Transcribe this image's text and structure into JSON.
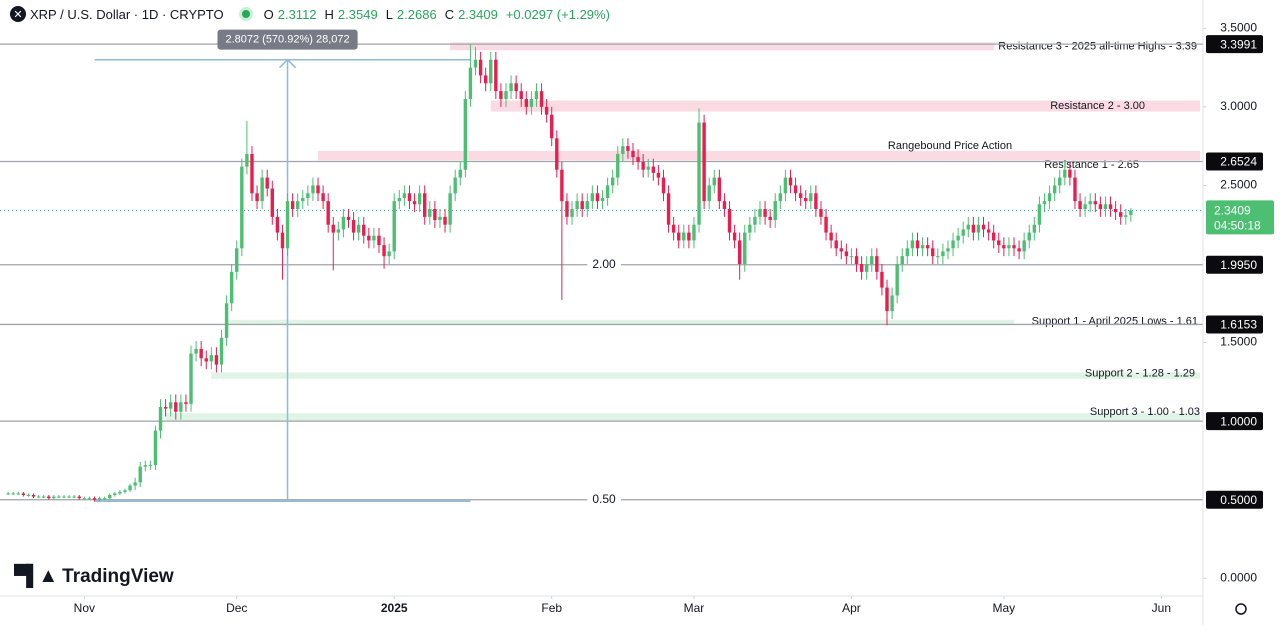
{
  "chart_data": {
    "type": "candlestick",
    "title": "XRP / U.S. Dollar · 1D · CRYPTO",
    "ohlc_legend": [
      {
        "key": "O",
        "value": 2.3112
      },
      {
        "key": "H",
        "value": 2.3549
      },
      {
        "key": "L",
        "value": 2.2686
      },
      {
        "key": "C",
        "value": 2.3409
      }
    ],
    "change": "+0.0297 (+1.29%)",
    "up_color": "#4cbf73",
    "down_color": "#e91e4f",
    "x": [
      0,
      1,
      2,
      3,
      4,
      5,
      6,
      7,
      8,
      9,
      10,
      11,
      12,
      13,
      14,
      15,
      16,
      17,
      18,
      19,
      20,
      21,
      22,
      23,
      24,
      25,
      26,
      27,
      28,
      29,
      30,
      31,
      32,
      33,
      34,
      35,
      36,
      37,
      38,
      39,
      40,
      41,
      42,
      43,
      44,
      45,
      46,
      47,
      48,
      49,
      50,
      51,
      52,
      53,
      54,
      55,
      56,
      57,
      58,
      59,
      60,
      61,
      62,
      63,
      64,
      65,
      66,
      67,
      68,
      69,
      70,
      71,
      72,
      73,
      74,
      75,
      76,
      77,
      78,
      79,
      80,
      81,
      82,
      83,
      84,
      85,
      86,
      87,
      88,
      89,
      90,
      91,
      92,
      93,
      94,
      95,
      96,
      97,
      98,
      99,
      100,
      101,
      102,
      103,
      104,
      105,
      106,
      107,
      108,
      109,
      110,
      111,
      112,
      113,
      114,
      115,
      116,
      117,
      118,
      119,
      120,
      121,
      122,
      123,
      124,
      125,
      126,
      127,
      128,
      129,
      130,
      131,
      132,
      133,
      134,
      135,
      136,
      137,
      138,
      139,
      140,
      141,
      142,
      143,
      144,
      145,
      146,
      147,
      148,
      149,
      150,
      151,
      152,
      153,
      154,
      155,
      156,
      157,
      158,
      159,
      160,
      161,
      162,
      163,
      164,
      165,
      166,
      167,
      168,
      169,
      170,
      171,
      172,
      173,
      174,
      175,
      176,
      177,
      178,
      179,
      180,
      181,
      182,
      183,
      184,
      185,
      186,
      187,
      188,
      189,
      190,
      191,
      192,
      193,
      194,
      195,
      196,
      197,
      198,
      199,
      200,
      201,
      202,
      203,
      204,
      205,
      206,
      207,
      208,
      209,
      210,
      211,
      212,
      213,
      214,
      215,
      216,
      217,
      218,
      219,
      220,
      221
    ],
    "open": [
      0.54,
      0.54,
      0.54,
      0.54,
      0.53,
      0.53,
      0.52,
      0.52,
      0.52,
      0.51,
      0.52,
      0.52,
      0.52,
      0.52,
      0.52,
      0.51,
      0.51,
      0.51,
      0.5,
      0.51,
      0.51,
      0.53,
      0.54,
      0.55,
      0.56,
      0.59,
      0.61,
      0.71,
      0.72,
      0.72,
      0.94,
      1.09,
      1.08,
      1.12,
      1.06,
      1.12,
      1.11,
      1.43,
      1.46,
      1.4,
      1.38,
      1.42,
      1.36,
      1.53,
      1.75,
      1.95,
      2.1,
      2.62,
      2.7,
      2.45,
      2.4,
      2.55,
      2.48,
      2.3,
      2.2,
      2.1,
      2.4,
      2.35,
      2.4,
      2.42,
      2.45,
      2.5,
      2.45,
      2.4,
      2.25,
      2.2,
      2.22,
      2.3,
      2.28,
      2.2,
      2.25,
      2.18,
      2.15,
      2.18,
      2.12,
      2.05,
      2.08,
      2.4,
      2.42,
      2.45,
      2.4,
      2.38,
      2.45,
      2.3,
      2.35,
      2.28,
      2.3,
      2.25,
      2.45,
      2.55,
      2.6,
      3.05,
      3.25,
      3.3,
      3.2,
      3.15,
      3.3,
      3.1,
      3.05,
      3.1,
      3.15,
      3.1,
      3.05,
      3.0,
      3.05,
      3.1,
      3.0,
      2.95,
      2.8,
      2.6,
      2.4,
      2.3,
      2.35,
      2.4,
      2.35,
      2.4,
      2.45,
      2.4,
      2.42,
      2.5,
      2.55,
      2.7,
      2.75,
      2.72,
      2.68,
      2.65,
      2.6,
      2.62,
      2.58,
      2.55,
      2.45,
      2.25,
      2.2,
      2.15,
      2.2,
      2.15,
      2.25,
      2.9,
      2.4,
      2.5,
      2.55,
      2.4,
      2.35,
      2.2,
      2.15,
      2.0,
      2.2,
      2.25,
      2.3,
      2.35,
      2.3,
      2.28,
      2.4,
      2.45,
      2.55,
      2.5,
      2.45,
      2.42,
      2.4,
      2.45,
      2.35,
      2.3,
      2.2,
      2.15,
      2.1,
      2.08,
      2.05,
      2.05,
      2.0,
      1.95,
      2.0,
      2.05,
      1.95,
      1.85,
      1.7,
      1.8,
      2.0,
      2.05,
      2.1,
      2.15,
      2.1,
      2.12,
      2.1,
      2.05,
      2.05,
      2.08,
      2.1,
      2.15,
      2.18,
      2.22,
      2.25,
      2.2,
      2.25,
      2.22,
      2.2,
      2.15,
      2.12,
      2.1,
      2.12,
      2.1,
      2.08,
      2.15,
      2.2,
      2.25,
      2.38,
      2.4,
      2.45,
      2.5,
      2.55,
      2.6,
      2.55,
      2.4,
      2.35,
      2.38,
      2.4,
      2.38,
      2.35,
      2.38,
      2.35,
      2.33,
      2.3,
      2.3112
    ],
    "high": [
      0.55,
      0.55,
      0.55,
      0.55,
      0.54,
      0.54,
      0.53,
      0.53,
      0.53,
      0.53,
      0.53,
      0.53,
      0.53,
      0.53,
      0.53,
      0.52,
      0.52,
      0.52,
      0.52,
      0.52,
      0.54,
      0.55,
      0.56,
      0.57,
      0.6,
      0.64,
      0.74,
      0.75,
      0.75,
      0.97,
      1.14,
      1.14,
      1.17,
      1.17,
      1.17,
      1.17,
      1.48,
      1.51,
      1.51,
      1.45,
      1.47,
      1.47,
      1.58,
      1.8,
      2.0,
      2.15,
      2.67,
      2.91,
      2.75,
      2.5,
      2.6,
      2.6,
      2.53,
      2.35,
      2.25,
      2.45,
      2.45,
      2.45,
      2.47,
      2.5,
      2.55,
      2.55,
      2.5,
      2.45,
      2.3,
      2.27,
      2.35,
      2.35,
      2.33,
      2.3,
      2.3,
      2.23,
      2.23,
      2.23,
      2.17,
      2.13,
      2.45,
      2.47,
      2.5,
      2.5,
      2.45,
      2.5,
      2.5,
      2.4,
      2.4,
      2.35,
      2.35,
      2.5,
      2.6,
      2.65,
      3.1,
      3.4,
      3.38,
      3.35,
      3.25,
      3.35,
      3.35,
      3.15,
      3.15,
      3.2,
      3.2,
      3.15,
      3.1,
      3.1,
      3.15,
      3.15,
      3.05,
      3.0,
      2.85,
      2.65,
      2.45,
      2.4,
      2.45,
      2.45,
      2.45,
      2.5,
      2.5,
      2.47,
      2.55,
      2.6,
      2.75,
      2.8,
      2.8,
      2.77,
      2.73,
      2.7,
      2.67,
      2.67,
      2.63,
      2.6,
      2.5,
      2.3,
      2.25,
      2.25,
      2.25,
      2.3,
      2.99,
      2.95,
      2.55,
      2.6,
      2.6,
      2.45,
      2.4,
      2.25,
      2.2,
      2.25,
      2.3,
      2.35,
      2.4,
      2.4,
      2.35,
      2.45,
      2.5,
      2.6,
      2.6,
      2.55,
      2.5,
      2.47,
      2.5,
      2.5,
      2.4,
      2.35,
      2.25,
      2.2,
      2.15,
      2.13,
      2.1,
      2.1,
      2.05,
      2.05,
      2.1,
      2.1,
      2.0,
      1.9,
      1.85,
      2.05,
      2.1,
      2.15,
      2.2,
      2.2,
      2.17,
      2.17,
      2.15,
      2.1,
      2.13,
      2.15,
      2.2,
      2.23,
      2.27,
      2.3,
      2.3,
      2.3,
      2.3,
      2.27,
      2.25,
      2.2,
      2.17,
      2.17,
      2.17,
      2.15,
      2.2,
      2.25,
      2.3,
      2.43,
      2.45,
      2.5,
      2.55,
      2.6,
      2.65,
      2.65,
      2.6,
      2.45,
      2.43,
      2.45,
      2.45,
      2.43,
      2.43,
      2.43,
      2.4,
      2.38,
      2.35,
      2.3549
    ],
    "low": [
      0.53,
      0.53,
      0.53,
      0.52,
      0.52,
      0.51,
      0.51,
      0.51,
      0.5,
      0.5,
      0.51,
      0.51,
      0.51,
      0.51,
      0.5,
      0.5,
      0.5,
      0.49,
      0.49,
      0.5,
      0.5,
      0.52,
      0.53,
      0.54,
      0.55,
      0.56,
      0.58,
      0.68,
      0.69,
      0.69,
      0.89,
      1.03,
      1.03,
      1.01,
      1.01,
      1.06,
      1.06,
      1.38,
      1.35,
      1.33,
      1.33,
      1.31,
      1.31,
      1.48,
      1.7,
      1.9,
      2.05,
      2.57,
      2.4,
      2.35,
      2.35,
      2.43,
      2.25,
      2.15,
      1.9,
      2.05,
      2.3,
      2.3,
      2.35,
      2.37,
      2.4,
      2.4,
      2.35,
      2.2,
      1.96,
      2.15,
      2.17,
      2.23,
      2.15,
      2.15,
      2.13,
      2.1,
      2.1,
      2.07,
      1.97,
      2.0,
      2.03,
      2.35,
      2.37,
      2.35,
      2.33,
      2.33,
      2.25,
      2.25,
      2.23,
      2.23,
      2.2,
      2.2,
      2.4,
      2.5,
      2.55,
      3.0,
      3.2,
      3.15,
      3.1,
      3.1,
      3.05,
      3.0,
      3.0,
      3.05,
      3.05,
      3.0,
      2.95,
      2.95,
      3.0,
      2.95,
      2.9,
      2.75,
      2.55,
      1.77,
      2.25,
      2.25,
      2.3,
      2.3,
      2.3,
      2.35,
      2.35,
      2.35,
      2.37,
      2.45,
      2.5,
      2.65,
      2.67,
      2.63,
      2.6,
      2.55,
      2.55,
      2.53,
      2.5,
      2.4,
      2.2,
      2.15,
      2.1,
      2.1,
      2.1,
      2.1,
      2.2,
      2.35,
      2.35,
      2.45,
      2.35,
      2.3,
      2.15,
      2.1,
      1.9,
      1.95,
      2.15,
      2.2,
      2.25,
      2.25,
      2.23,
      2.23,
      2.35,
      2.4,
      2.45,
      2.4,
      2.37,
      2.35,
      2.35,
      2.3,
      2.25,
      2.15,
      2.1,
      2.05,
      2.03,
      2.0,
      2.0,
      1.95,
      1.9,
      1.9,
      1.95,
      1.9,
      1.8,
      1.61,
      1.65,
      1.75,
      1.95,
      2.0,
      2.05,
      2.05,
      2.05,
      2.05,
      2.0,
      2.0,
      2.0,
      2.03,
      2.05,
      2.1,
      2.13,
      2.17,
      2.15,
      2.15,
      2.17,
      2.15,
      2.1,
      2.07,
      2.05,
      2.05,
      2.05,
      2.03,
      2.03,
      2.1,
      2.15,
      2.2,
      2.33,
      2.35,
      2.4,
      2.45,
      2.5,
      2.5,
      2.35,
      2.3,
      2.3,
      2.33,
      2.33,
      2.3,
      2.3,
      2.3,
      2.28,
      2.25,
      2.25,
      2.2686
    ],
    "close": [
      0.54,
      0.54,
      0.54,
      0.53,
      0.53,
      0.52,
      0.52,
      0.52,
      0.51,
      0.52,
      0.52,
      0.52,
      0.52,
      0.52,
      0.51,
      0.51,
      0.51,
      0.5,
      0.51,
      0.51,
      0.53,
      0.54,
      0.55,
      0.56,
      0.59,
      0.61,
      0.71,
      0.72,
      0.72,
      0.94,
      1.09,
      1.08,
      1.12,
      1.06,
      1.12,
      1.11,
      1.43,
      1.46,
      1.4,
      1.38,
      1.42,
      1.36,
      1.53,
      1.75,
      1.95,
      2.1,
      2.62,
      2.7,
      2.45,
      2.4,
      2.55,
      2.48,
      2.3,
      2.2,
      2.1,
      2.4,
      2.35,
      2.4,
      2.42,
      2.45,
      2.5,
      2.45,
      2.4,
      2.25,
      2.2,
      2.22,
      2.3,
      2.28,
      2.2,
      2.25,
      2.18,
      2.15,
      2.18,
      2.12,
      2.05,
      2.08,
      2.4,
      2.42,
      2.45,
      2.4,
      2.38,
      2.45,
      2.3,
      2.35,
      2.28,
      2.3,
      2.25,
      2.45,
      2.55,
      2.6,
      3.05,
      3.25,
      3.3,
      3.2,
      3.15,
      3.3,
      3.1,
      3.05,
      3.1,
      3.15,
      3.1,
      3.05,
      3.0,
      3.05,
      3.1,
      3.0,
      2.95,
      2.8,
      2.6,
      2.4,
      2.3,
      2.35,
      2.4,
      2.35,
      2.4,
      2.45,
      2.4,
      2.42,
      2.5,
      2.55,
      2.7,
      2.75,
      2.72,
      2.68,
      2.65,
      2.6,
      2.62,
      2.58,
      2.55,
      2.45,
      2.25,
      2.2,
      2.15,
      2.2,
      2.15,
      2.25,
      2.9,
      2.4,
      2.5,
      2.55,
      2.4,
      2.35,
      2.2,
      2.15,
      2.0,
      2.2,
      2.25,
      2.3,
      2.35,
      2.3,
      2.28,
      2.4,
      2.45,
      2.55,
      2.5,
      2.45,
      2.42,
      2.4,
      2.45,
      2.35,
      2.3,
      2.2,
      2.15,
      2.1,
      2.08,
      2.05,
      2.05,
      2.0,
      1.95,
      2.0,
      2.05,
      1.95,
      1.85,
      1.7,
      1.8,
      2.0,
      2.05,
      2.1,
      2.15,
      2.1,
      2.12,
      2.1,
      2.05,
      2.05,
      2.08,
      2.1,
      2.15,
      2.18,
      2.22,
      2.25,
      2.2,
      2.25,
      2.22,
      2.2,
      2.15,
      2.12,
      2.1,
      2.12,
      2.1,
      2.08,
      2.15,
      2.2,
      2.25,
      2.38,
      2.4,
      2.45,
      2.5,
      2.55,
      2.6,
      2.55,
      2.4,
      2.35,
      2.38,
      2.4,
      2.38,
      2.35,
      2.38,
      2.35,
      2.33,
      2.3,
      2.31,
      2.3409
    ],
    "xlim": [
      -1.6,
      235.2
    ],
    "xticks": [
      {
        "value": 15,
        "label": "Nov"
      },
      {
        "value": 45,
        "label": "Dec"
      },
      {
        "value": 76,
        "label": "2025"
      },
      {
        "value": 107,
        "label": "Feb"
      },
      {
        "value": 135,
        "label": "Mar"
      },
      {
        "value": 166,
        "label": "Apr"
      },
      {
        "value": 196,
        "label": "May"
      },
      {
        "value": 227,
        "label": "Jun"
      }
    ],
    "ylim": [
      -0.1,
      3.68
    ],
    "yticks": [
      {
        "value": 3.5,
        "label": "3.5000"
      },
      {
        "value": 3,
        "label": "3.0000"
      },
      {
        "value": 2.5,
        "label": "2.5000"
      },
      {
        "value": 1.5,
        "label": "1.5000"
      },
      {
        "value": 0,
        "label": "0.0000"
      }
    ],
    "price_lines": [
      {
        "value": 3.3991,
        "label": "3.3991"
      },
      {
        "value": 2.6524,
        "label": "2.6524"
      },
      {
        "value": 1.995,
        "label": "1.9950",
        "text": "2.00"
      },
      {
        "value": 1.6153,
        "label": "1.6153"
      },
      {
        "value": 1,
        "label": "1.0000"
      },
      {
        "value": 0.5,
        "label": "0.5000",
        "text": "0.50"
      }
    ],
    "last_price": {
      "value": 2.3409,
      "label": "2.3409",
      "countdown": "04:50:18"
    },
    "zones": [
      {
        "label": "Resistance 3 - 2025 all-time Highs - 3.39",
        "low": 3.36,
        "high": 3.41,
        "from": 87,
        "color": "#fadbe3"
      },
      {
        "label": "Resistance 2 - 3.00",
        "low": 2.97,
        "high": 3.04,
        "from": 95,
        "color": "#fadbe3"
      },
      {
        "label": "Resistance 1 - 2.65",
        "note": "Rangebound Price Action",
        "low": 2.66,
        "high": 2.72,
        "from": 61,
        "color": "#fadbe3"
      },
      {
        "label": "Support 1 - April 2025 Lows - 1.61",
        "low": 1.62,
        "high": 1.645,
        "from": 43,
        "to": 198,
        "color": "#dff3e6"
      },
      {
        "label": "Support 2 - 1.28 - 1.29",
        "low": 1.27,
        "high": 1.31,
        "from": 40,
        "color": "#dff3e6"
      },
      {
        "label": "Support 3 - 1.00 - 1.03",
        "low": 1.0,
        "high": 1.05,
        "from": 31,
        "color": "#dff3e6"
      }
    ],
    "measure": {
      "low": 0.49,
      "high": 3.3,
      "from": 17,
      "to": 91,
      "at": 55,
      "label": "2.8072 (570.92%) 28,072",
      "color": "#8fbad8"
    },
    "watermark": "TradingView"
  }
}
